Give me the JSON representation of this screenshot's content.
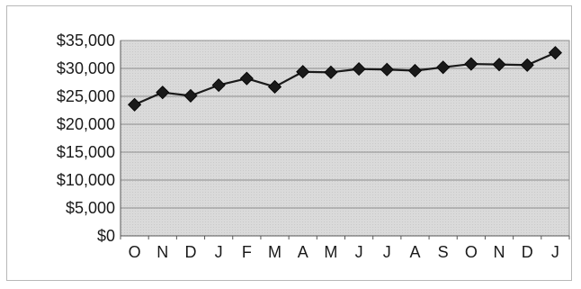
{
  "chart_data": {
    "type": "line",
    "title": "",
    "xlabel": "",
    "ylabel": "",
    "categories": [
      "O",
      "N",
      "D",
      "J",
      "F",
      "M",
      "A",
      "M",
      "J",
      "J",
      "A",
      "S",
      "O",
      "N",
      "D",
      "J"
    ],
    "series": [
      {
        "values": [
          23500,
          25700,
          25100,
          27000,
          28200,
          26700,
          29400,
          29300,
          29900,
          29800,
          29600,
          30200,
          30800,
          30700,
          30600,
          32800
        ]
      }
    ],
    "ylim": [
      0,
      35000
    ],
    "yticks": [
      0,
      5000,
      10000,
      15000,
      20000,
      25000,
      30000,
      35000
    ],
    "ytick_labels": [
      "$0",
      "$5,000",
      "$10,000",
      "$15,000",
      "$20,000",
      "$25,000",
      "$30,000",
      "$35,000"
    ],
    "grid": true,
    "legend": "none",
    "colors": {
      "plot_background": "#dcdcdc",
      "gridline": "#8c8c8c",
      "line": "#1a1a1a",
      "marker": "#1a1a1a"
    },
    "marker": "diamond"
  }
}
